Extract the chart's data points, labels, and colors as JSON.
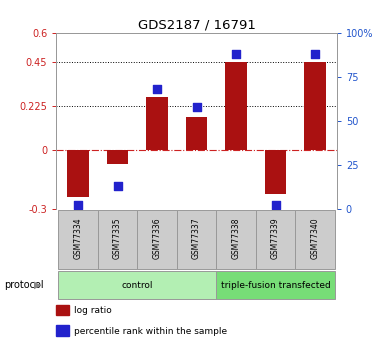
{
  "title": "GDS2187 / 16791",
  "samples": [
    "GSM77334",
    "GSM77335",
    "GSM77336",
    "GSM77337",
    "GSM77338",
    "GSM77339",
    "GSM77340"
  ],
  "log_ratio": [
    -0.24,
    -0.07,
    0.27,
    0.17,
    0.45,
    -0.22,
    0.45
  ],
  "percentile_rank": [
    2.2,
    13.0,
    68.0,
    58.0,
    88.0,
    2.2,
    88.0
  ],
  "groups": [
    {
      "label": "control",
      "span": [
        0,
        3
      ],
      "color": "#b3efb3"
    },
    {
      "label": "triple-fusion transfected",
      "span": [
        4,
        6
      ],
      "color": "#77dd77"
    }
  ],
  "bar_color": "#aa1111",
  "dot_color": "#2222cc",
  "ylim_left": [
    -0.3,
    0.6
  ],
  "ylim_right": [
    0,
    100
  ],
  "yticks_left": [
    -0.3,
    0.0,
    0.225,
    0.45,
    0.6
  ],
  "ytick_labels_left": [
    "-0.3",
    "0",
    "0.225",
    "0.45",
    "0.6"
  ],
  "yticks_right": [
    0,
    25,
    50,
    75,
    100
  ],
  "ytick_labels_right": [
    "0",
    "25",
    "50",
    "75",
    "100%"
  ],
  "hlines": [
    0.225,
    0.45
  ],
  "protocol_label": "protocol",
  "legend_items": [
    {
      "label": "log ratio",
      "color": "#aa1111"
    },
    {
      "label": "percentile rank within the sample",
      "color": "#2222cc"
    }
  ],
  "bar_width": 0.55,
  "dot_size": 28,
  "figsize": [
    3.88,
    3.45
  ],
  "dpi": 100
}
